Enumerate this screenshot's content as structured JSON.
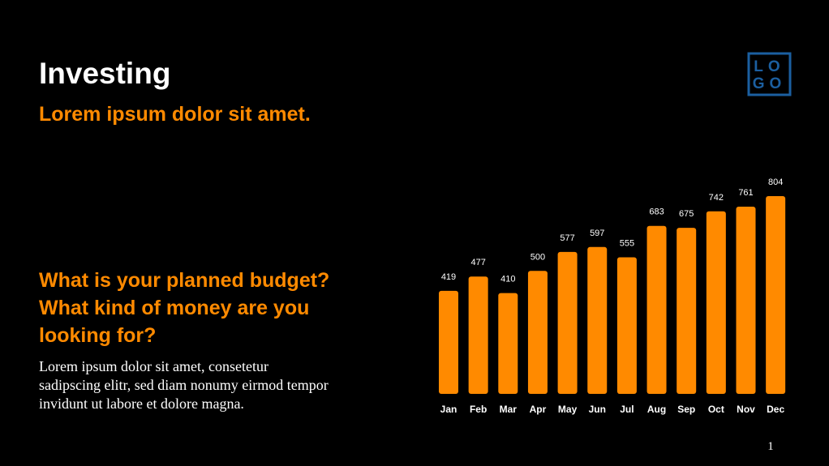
{
  "title": "Investing",
  "subtitle": "Lorem ipsum dolor sit amet.",
  "logo": [
    "LO",
    "GO"
  ],
  "question_lines": [
    "What is your planned budget?",
    "What kind of money are you",
    "looking for?"
  ],
  "body_lines": [
    "Lorem ipsum dolor sit amet, consetetur",
    "sadipscing elitr, sed diam nonumy eirmod tempor",
    "invidunt ut labore et dolore magna."
  ],
  "page_number": 1,
  "chart_data": {
    "type": "bar",
    "categories": [
      "Jan",
      "Feb",
      "Mar",
      "Apr",
      "May",
      "Jun",
      "Jul",
      "Aug",
      "Sep",
      "Oct",
      "Nov",
      "Dec"
    ],
    "values": [
      419,
      477,
      410,
      500,
      577,
      597,
      555,
      683,
      675,
      742,
      761,
      804
    ],
    "color": "#ff8a00"
  }
}
